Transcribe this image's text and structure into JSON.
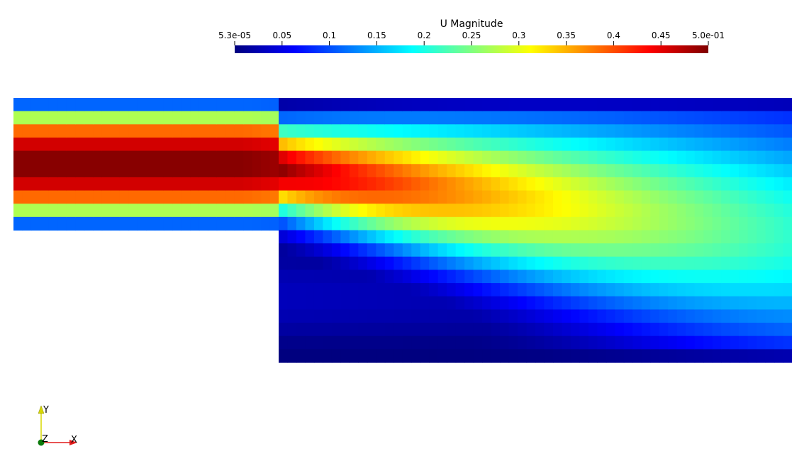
{
  "colorbar": {
    "title": "U Magnitude",
    "ticks": [
      "5.3e-05",
      "0.05",
      "0.1",
      "0.15",
      "0.2",
      "0.25",
      "0.3",
      "0.35",
      "0.4",
      "0.45",
      "5.0e-01"
    ]
  },
  "orientation_axes": {
    "y": "Y",
    "z": "Z",
    "x": "X"
  },
  "colors": {
    "colormap": [
      "#00007f",
      "#0000ff",
      "#00ffff",
      "#ffff00",
      "#ff0000",
      "#7f0000"
    ],
    "x_axis": "#e11b1b",
    "y_axis": "#d8d800",
    "z_axis": "#0b7a0b"
  }
}
